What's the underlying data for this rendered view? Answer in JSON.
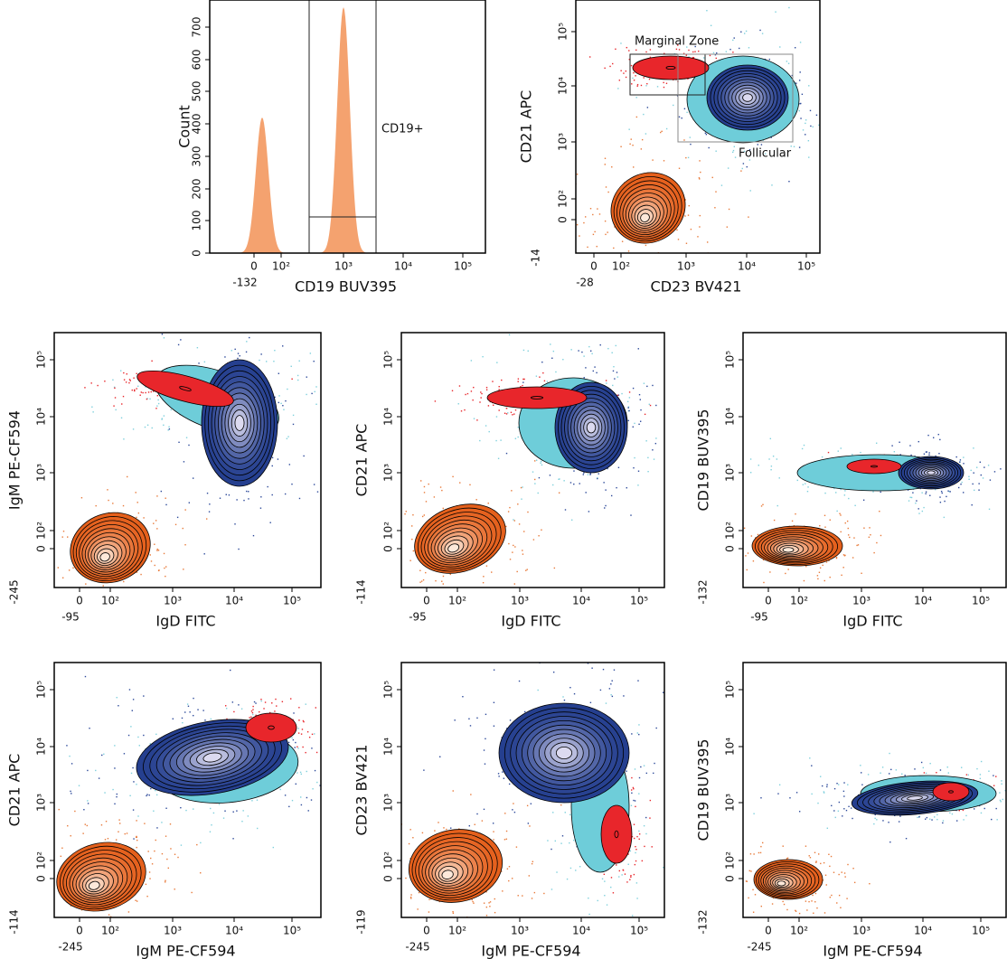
{
  "panels": [
    {
      "x_label": "CD19 BUV395",
      "y_label": "Count",
      "x_ticks": [
        "0",
        "10²",
        "10³",
        "10⁴",
        "10⁵"
      ],
      "x_min_label": "-132",
      "y_ticks": [
        "0",
        "100",
        "200",
        "300",
        "400",
        "500",
        "600",
        "700"
      ],
      "gates": [
        "CD19+"
      ]
    },
    {
      "x_label": "CD23 BV421",
      "y_label": "CD21 APC",
      "x_ticks": [
        "0",
        "10²",
        "10³",
        "10⁴",
        "10⁵"
      ],
      "x_min_label": "-28",
      "y_ticks": [
        "0",
        "10²",
        "10³",
        "10⁴",
        "10⁵"
      ],
      "y_min_label": "-14",
      "gates": [
        "Marginal Zone",
        "Follicular"
      ]
    },
    {
      "x_label": "IgD FITC",
      "y_label": "IgM PE-CF594",
      "x_ticks": [
        "0",
        "10²",
        "10³",
        "10⁴",
        "10⁵"
      ],
      "x_min_label": "-95",
      "y_ticks": [
        "0",
        "10²",
        "10³",
        "10⁴",
        "10⁵"
      ],
      "y_min_label": "-245"
    },
    {
      "x_label": "IgD FITC",
      "y_label": "CD21 APC",
      "x_ticks": [
        "0",
        "10²",
        "10³",
        "10⁴",
        "10⁵"
      ],
      "x_min_label": "-95",
      "y_ticks": [
        "0",
        "10²",
        "10³",
        "10⁴",
        "10⁵"
      ],
      "y_min_label": "-114"
    },
    {
      "x_label": "IgD FITC",
      "y_label": "CD19 BUV395",
      "x_ticks": [
        "0",
        "10²",
        "10³",
        "10⁴",
        "10⁵"
      ],
      "x_min_label": "-95",
      "y_ticks": [
        "0",
        "10²",
        "10³",
        "10⁴",
        "10⁵"
      ],
      "y_min_label": "-132"
    },
    {
      "x_label": "IgM PE-CF594",
      "y_label": "CD21 APC",
      "x_ticks": [
        "0",
        "10²",
        "10³",
        "10⁴",
        "10⁵"
      ],
      "x_min_label": "-245",
      "y_ticks": [
        "0",
        "10²",
        "10³",
        "10⁴",
        "10⁵"
      ],
      "y_min_label": "-114"
    },
    {
      "x_label": "IgM PE-CF594",
      "y_label": "CD23 BV421",
      "x_ticks": [
        "0",
        "10²",
        "10³",
        "10⁴",
        "10⁵"
      ],
      "x_min_label": "-245",
      "y_ticks": [
        "0",
        "10²",
        "10³",
        "10⁴",
        "10⁵"
      ],
      "y_min_label": "-119"
    },
    {
      "x_label": "IgM PE-CF594",
      "y_label": "CD19 BUV395",
      "x_ticks": [
        "0",
        "10²",
        "10³",
        "10⁴",
        "10⁵"
      ],
      "x_min_label": "-245",
      "y_ticks": [
        "0",
        "10²",
        "10³",
        "10⁴",
        "10⁵"
      ],
      "y_min_label": "-132"
    }
  ]
}
